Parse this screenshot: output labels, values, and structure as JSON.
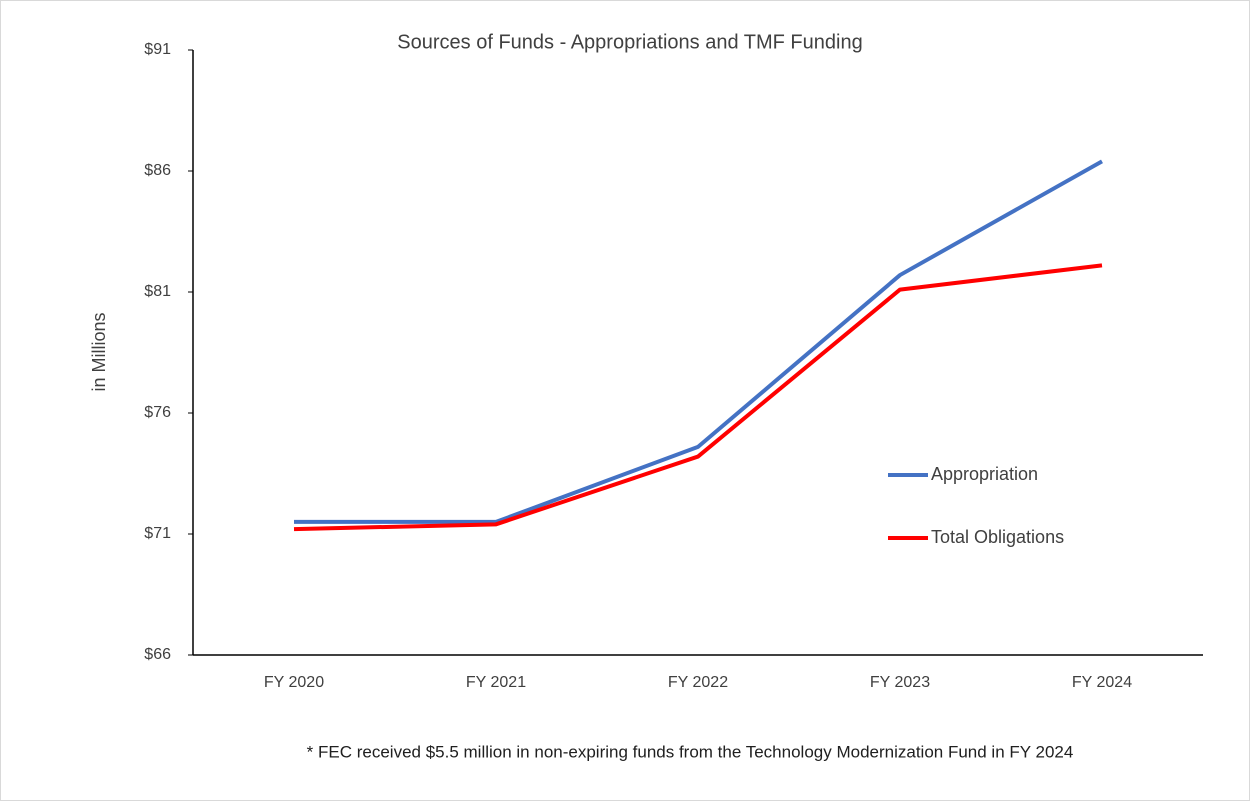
{
  "chart_data": {
    "type": "line",
    "title": "Sources of Funds - Appropriations and TMF Funding",
    "y_label": "in Millions",
    "note": "* FEC received $5.5 million in non-expiring funds from the Technology Modernization Fund in FY 2024",
    "categories": [
      "FY 2020",
      "FY 2021",
      "FY 2022",
      "FY 2023",
      "FY 2024"
    ],
    "series": [
      {
        "name": "Appropriation",
        "color": "#4472c4",
        "values": [
          71.5,
          71.5,
          74.6,
          81.7,
          86.4
        ]
      },
      {
        "name": "Total Obligations",
        "color": "#ff0000",
        "values": [
          71.2,
          71.4,
          74.2,
          81.1,
          82.1
        ]
      }
    ],
    "ylim": [
      66,
      91
    ],
    "yticks": [
      {
        "value": 66,
        "label": "$66"
      },
      {
        "value": 71,
        "label": "$71"
      },
      {
        "value": 76,
        "label": "$76"
      },
      {
        "value": 81,
        "label": "$81"
      },
      {
        "value": 86,
        "label": "$86"
      },
      {
        "value": 91,
        "label": "$91"
      }
    ],
    "grid": false
  }
}
